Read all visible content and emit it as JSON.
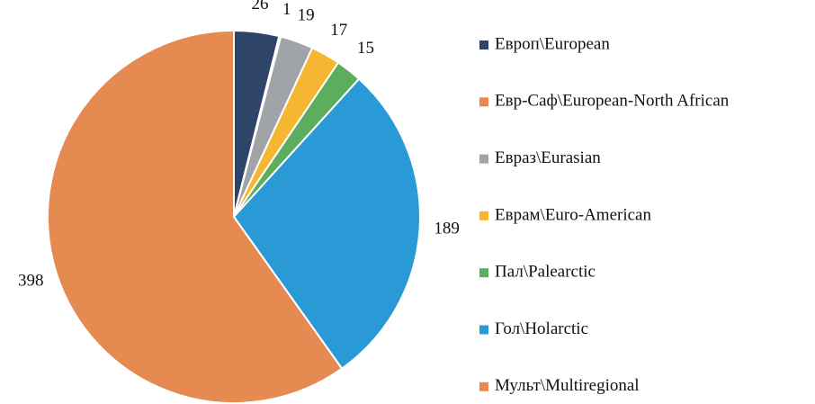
{
  "chart_data": {
    "type": "pie",
    "series": [
      {
        "name": "Европ\\European",
        "color": "#2e4468",
        "values": [
          26
        ]
      },
      {
        "name": "Евр-Саф\\European-North African",
        "color": "#e58a50",
        "values": [
          1
        ]
      },
      {
        "name": "Евраз\\Eurasian",
        "color": "#a0a4a9",
        "values": [
          19
        ]
      },
      {
        "name": "Еврам\\Euro-American",
        "color": "#f5b731",
        "values": [
          17
        ]
      },
      {
        "name": "Пал\\Palearctic",
        "color": "#5cad5e",
        "values": [
          15
        ]
      },
      {
        "name": "Гол\\Holarctic",
        "color": "#2a9ad6",
        "values": [
          189
        ]
      },
      {
        "name": "Мульт\\Multiregional",
        "color": "#e58a50",
        "values": [
          398
        ]
      }
    ],
    "legend": "right"
  }
}
